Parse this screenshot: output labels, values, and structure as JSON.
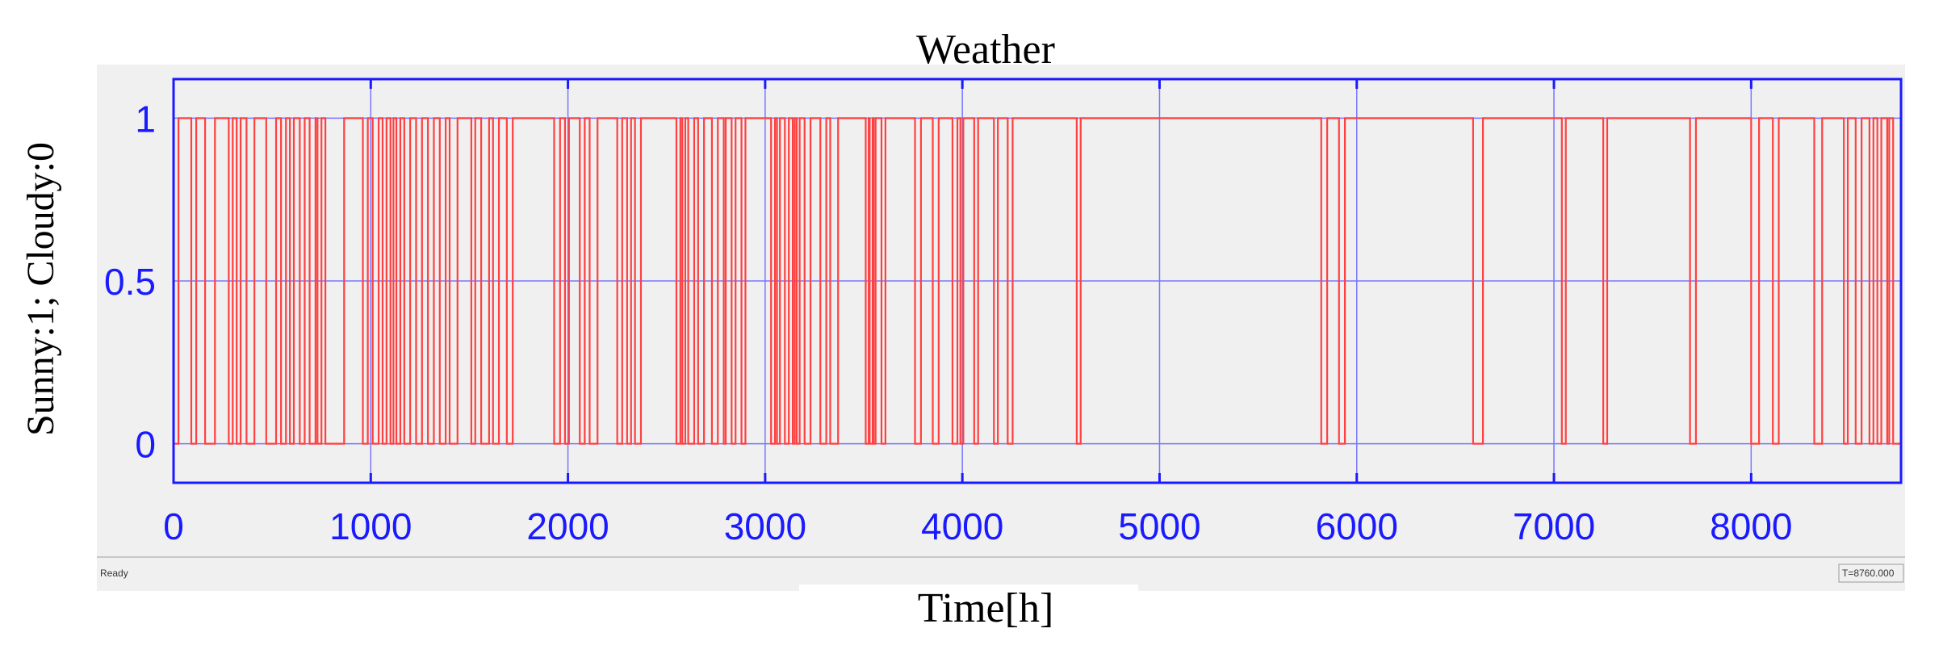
{
  "chart_data": {
    "type": "line",
    "title": "Weather",
    "xlabel": "Time[h]",
    "ylabel": "Sunny:1; Cloudy:0",
    "xlim": [
      0,
      8760
    ],
    "ylim": [
      -0.12,
      1.12
    ],
    "xticks": [
      0,
      1000,
      2000,
      3000,
      4000,
      5000,
      6000,
      7000,
      8000
    ],
    "yticks": [
      0,
      0.5,
      1
    ],
    "ytick_labels": [
      "0",
      "0.5",
      "1"
    ],
    "grid": true,
    "colors": {
      "series": "#ff4040",
      "axes": "#1a1aff",
      "grid": "#7777ff",
      "plot_bg": "#f0f0f0"
    },
    "series": [
      {
        "style": "step",
        "cloudy_intervals": [
          [
            0,
            25
          ],
          [
            90,
            115
          ],
          [
            160,
            210
          ],
          [
            280,
            300
          ],
          [
            320,
            340
          ],
          [
            370,
            410
          ],
          [
            470,
            520
          ],
          [
            545,
            570
          ],
          [
            590,
            610
          ],
          [
            640,
            665
          ],
          [
            690,
            720
          ],
          [
            730,
            750
          ],
          [
            770,
            865
          ],
          [
            960,
            985
          ],
          [
            1010,
            1040
          ],
          [
            1060,
            1080
          ],
          [
            1100,
            1115
          ],
          [
            1130,
            1150
          ],
          [
            1170,
            1200
          ],
          [
            1230,
            1260
          ],
          [
            1290,
            1320
          ],
          [
            1350,
            1380
          ],
          [
            1400,
            1440
          ],
          [
            1510,
            1530
          ],
          [
            1560,
            1600
          ],
          [
            1620,
            1650
          ],
          [
            1690,
            1720
          ],
          [
            1930,
            1960
          ],
          [
            1985,
            2005
          ],
          [
            2060,
            2085
          ],
          [
            2110,
            2150
          ],
          [
            2250,
            2275
          ],
          [
            2300,
            2320
          ],
          [
            2340,
            2370
          ],
          [
            2550,
            2570
          ],
          [
            2580,
            2595
          ],
          [
            2610,
            2640
          ],
          [
            2660,
            2690
          ],
          [
            2730,
            2760
          ],
          [
            2790,
            2800
          ],
          [
            2830,
            2850
          ],
          [
            2880,
            2900
          ],
          [
            3030,
            3050
          ],
          [
            3060,
            3075
          ],
          [
            3100,
            3120
          ],
          [
            3140,
            3150
          ],
          [
            3160,
            3175
          ],
          [
            3200,
            3230
          ],
          [
            3280,
            3310
          ],
          [
            3330,
            3370
          ],
          [
            3510,
            3525
          ],
          [
            3530,
            3545
          ],
          [
            3550,
            3560
          ],
          [
            3590,
            3610
          ],
          [
            3760,
            3790
          ],
          [
            3850,
            3880
          ],
          [
            3950,
            3975
          ],
          [
            3990,
            4005
          ],
          [
            4060,
            4080
          ],
          [
            4160,
            4180
          ],
          [
            4230,
            4255
          ],
          [
            4580,
            4600
          ],
          [
            5820,
            5850
          ],
          [
            5910,
            5940
          ],
          [
            6590,
            6640
          ],
          [
            7040,
            7060
          ],
          [
            7250,
            7270
          ],
          [
            7690,
            7720
          ],
          [
            8000,
            8040
          ],
          [
            8110,
            8140
          ],
          [
            8320,
            8360
          ],
          [
            8470,
            8490
          ],
          [
            8530,
            8560
          ],
          [
            8600,
            8620
          ],
          [
            8640,
            8660
          ],
          [
            8690,
            8700
          ],
          [
            8720,
            8760
          ]
        ]
      }
    ]
  },
  "status_bar": {
    "left": "Ready",
    "right": "T=8760.000"
  }
}
